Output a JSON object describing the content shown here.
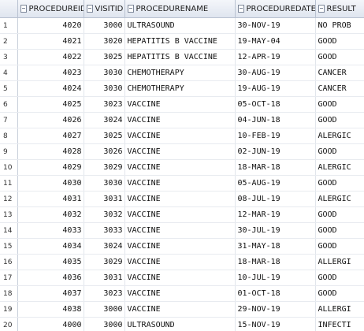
{
  "columns": [
    "PROCEDUREID",
    "VISITID",
    "PROCEDURENAME",
    "PROCEDUREDATE",
    "RESULT"
  ],
  "rows": [
    {
      "n": "1",
      "id": "4020",
      "visit": "3000",
      "name": "ULTRASOUND",
      "date": "30-NOV-19",
      "result": "NO PROB"
    },
    {
      "n": "2",
      "id": "4021",
      "visit": "3020",
      "name": "HEPATITIS B VACCINE",
      "date": "19-MAY-04",
      "result": "GOOD"
    },
    {
      "n": "3",
      "id": "4022",
      "visit": "3025",
      "name": "HEPATITIS B VACCINE",
      "date": "12-APR-19",
      "result": "GOOD"
    },
    {
      "n": "4",
      "id": "4023",
      "visit": "3030",
      "name": "CHEMOTHERAPY",
      "date": "30-AUG-19",
      "result": "CANCER"
    },
    {
      "n": "5",
      "id": "4024",
      "visit": "3030",
      "name": "CHEMOTHERAPY",
      "date": "19-AUG-19",
      "result": "CANCER"
    },
    {
      "n": "6",
      "id": "4025",
      "visit": "3023",
      "name": "VACCINE",
      "date": "05-OCT-18",
      "result": "GOOD"
    },
    {
      "n": "7",
      "id": "4026",
      "visit": "3024",
      "name": "VACCINE",
      "date": "04-JUN-18",
      "result": "GOOD"
    },
    {
      "n": "8",
      "id": "4027",
      "visit": "3025",
      "name": "VACCINE",
      "date": "10-FEB-19",
      "result": "ALERGIC"
    },
    {
      "n": "9",
      "id": "4028",
      "visit": "3026",
      "name": "VACCINE",
      "date": "02-JUN-19",
      "result": "GOOD"
    },
    {
      "n": "10",
      "id": "4029",
      "visit": "3029",
      "name": "VACCINE",
      "date": "18-MAR-18",
      "result": "ALERGIC"
    },
    {
      "n": "11",
      "id": "4030",
      "visit": "3030",
      "name": "VACCINE",
      "date": "05-AUG-19",
      "result": "GOOD"
    },
    {
      "n": "12",
      "id": "4031",
      "visit": "3031",
      "name": "VACCINE",
      "date": "08-JUL-19",
      "result": "ALERGIC"
    },
    {
      "n": "13",
      "id": "4032",
      "visit": "3032",
      "name": "VACCINE",
      "date": "12-MAR-19",
      "result": "GOOD"
    },
    {
      "n": "14",
      "id": "4033",
      "visit": "3033",
      "name": "VACCINE",
      "date": "30-JUL-19",
      "result": "GOOD"
    },
    {
      "n": "15",
      "id": "4034",
      "visit": "3024",
      "name": "VACCINE",
      "date": "31-MAY-18",
      "result": "GOOD"
    },
    {
      "n": "16",
      "id": "4035",
      "visit": "3029",
      "name": "VACCINE",
      "date": "18-MAR-18",
      "result": "ALLERGI"
    },
    {
      "n": "17",
      "id": "4036",
      "visit": "3031",
      "name": "VACCINE",
      "date": "10-JUL-19",
      "result": "GOOD"
    },
    {
      "n": "18",
      "id": "4037",
      "visit": "3023",
      "name": "VACCINE",
      "date": "01-OCT-18",
      "result": "GOOD"
    },
    {
      "n": "19",
      "id": "4038",
      "visit": "3000",
      "name": "VACCINE",
      "date": "29-NOV-19",
      "result": "ALLERGI"
    },
    {
      "n": "20",
      "id": "4000",
      "visit": "3000",
      "name": "ULTRASOUND",
      "date": "15-NOV-19",
      "result": "INFECTI"
    }
  ]
}
